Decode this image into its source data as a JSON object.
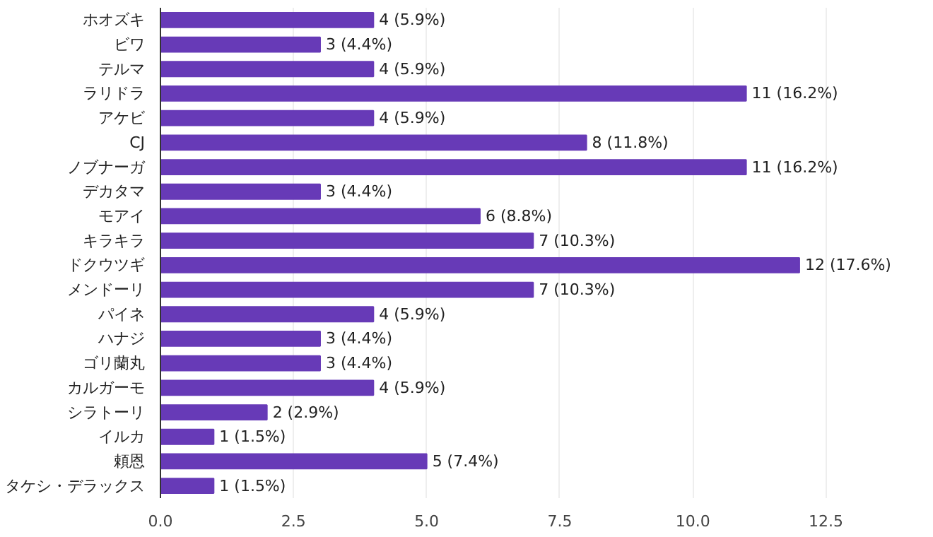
{
  "chart_data": {
    "type": "bar",
    "orientation": "horizontal",
    "categories": [
      "ホオズキ",
      "ビワ",
      "テルマ",
      "ラリドラ",
      "アケビ",
      "CJ",
      "ノブナーガ",
      "デカタマ",
      "モアイ",
      "キラキラ",
      "ドクウツギ",
      "メンドーリ",
      "パイネ",
      "ハナジ",
      "ゴリ蘭丸",
      "カルガーモ",
      "シラトーリ",
      "イルカ",
      "頼恩",
      "タケシ・デラックス"
    ],
    "values": [
      4,
      3,
      4,
      11,
      4,
      8,
      11,
      3,
      6,
      7,
      12,
      7,
      4,
      3,
      3,
      4,
      2,
      1,
      5,
      1
    ],
    "value_labels": [
      "4 (5.9%)",
      "3 (4.4%)",
      "4 (5.9%)",
      "11 (16.2%)",
      "4 (5.9%)",
      "8 (11.8%)",
      "11 (16.2%)",
      "3 (4.4%)",
      "6 (8.8%)",
      "7 (10.3%)",
      "12 (17.6%)",
      "7 (10.3%)",
      "4 (5.9%)",
      "3 (4.4%)",
      "3 (4.4%)",
      "4 (5.9%)",
      "2 (2.9%)",
      "1 (1.5%)",
      "5 (7.4%)",
      "1 (1.5%)"
    ],
    "color": "#673ab7",
    "xlim": [
      0,
      12.5
    ],
    "xticks": [
      {
        "value": 0,
        "label": "0.0"
      },
      {
        "value": 2.5,
        "label": "2.5"
      },
      {
        "value": 5,
        "label": "5.0"
      },
      {
        "value": 7.5,
        "label": "7.5"
      },
      {
        "value": 10,
        "label": "10.0"
      },
      {
        "value": 12.5,
        "label": "12.5"
      }
    ],
    "grid": "x"
  }
}
